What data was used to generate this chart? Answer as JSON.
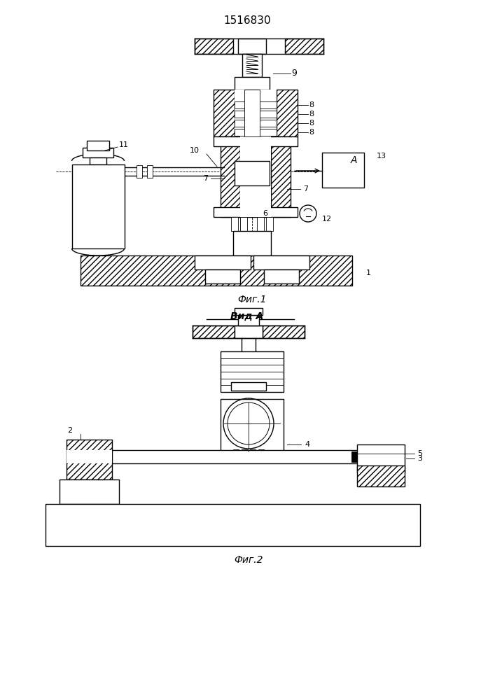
{
  "title": "1516830",
  "fig1_label": "Фиг.1",
  "fig2_label": "Фиг.2",
  "view_label": "Вид А",
  "bg_color": "#ffffff",
  "lw": 1.0,
  "tlw": 0.6
}
